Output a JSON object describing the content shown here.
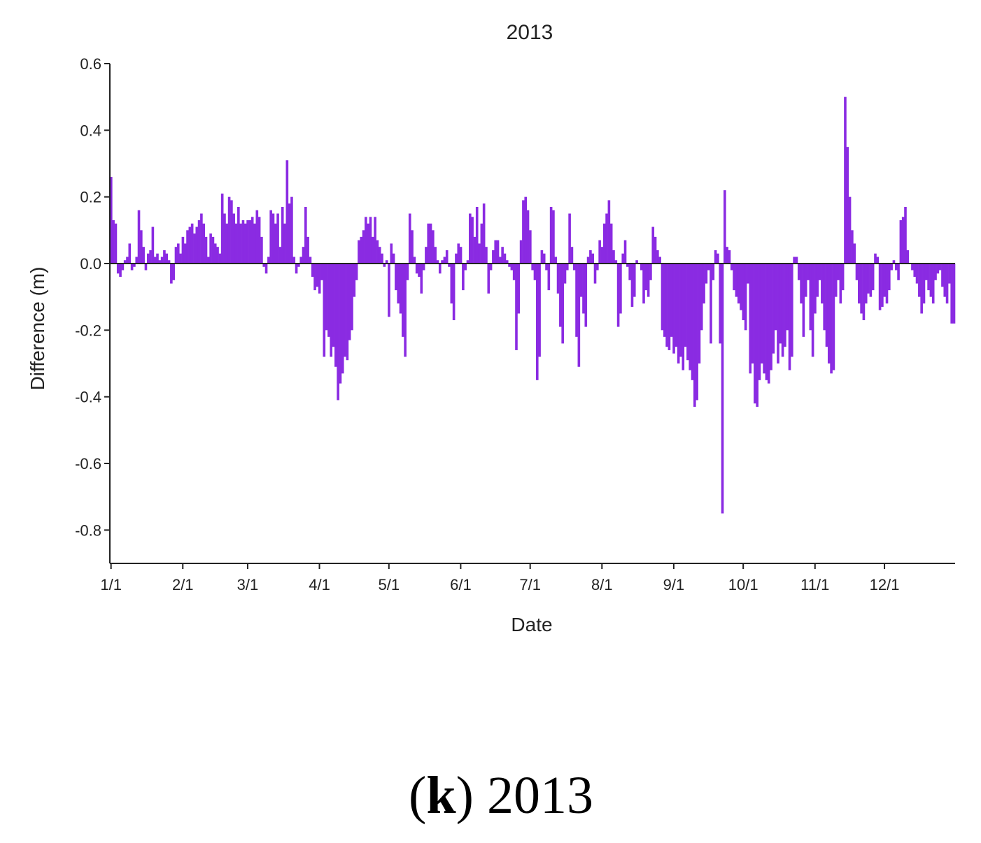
{
  "chart_data": {
    "type": "bar",
    "title": "2013",
    "xlabel": "Date",
    "ylabel": "Difference (m)",
    "color": "#8a2be2",
    "xlim": [
      0.5,
      365.5
    ],
    "ylim": [
      -0.9,
      0.6
    ],
    "xticks": [
      {
        "value": 1,
        "label": "1/1"
      },
      {
        "value": 32,
        "label": "2/1"
      },
      {
        "value": 60,
        "label": "3/1"
      },
      {
        "value": 91,
        "label": "4/1"
      },
      {
        "value": 121,
        "label": "5/1"
      },
      {
        "value": 152,
        "label": "6/1"
      },
      {
        "value": 182,
        "label": "7/1"
      },
      {
        "value": 213,
        "label": "8/1"
      },
      {
        "value": 244,
        "label": "9/1"
      },
      {
        "value": 274,
        "label": "10/1"
      },
      {
        "value": 305,
        "label": "11/1"
      },
      {
        "value": 335,
        "label": "12/1"
      }
    ],
    "yticks": [
      0.6,
      0.4,
      0.2,
      {
        "value": 0,
        "label": "0.0"
      },
      -0.2,
      -0.4,
      -0.6,
      -0.8
    ],
    "x": [
      1,
      2,
      3,
      4,
      5,
      6,
      7,
      8,
      9,
      10,
      11,
      12,
      13,
      14,
      15,
      16,
      17,
      18,
      19,
      20,
      21,
      22,
      23,
      24,
      25,
      26,
      27,
      28,
      29,
      30,
      31,
      32,
      33,
      34,
      35,
      36,
      37,
      38,
      39,
      40,
      41,
      42,
      43,
      44,
      45,
      46,
      47,
      48,
      49,
      50,
      51,
      52,
      53,
      54,
      55,
      56,
      57,
      58,
      59,
      60,
      61,
      62,
      63,
      64,
      65,
      66,
      67,
      68,
      69,
      70,
      71,
      72,
      73,
      74,
      75,
      76,
      77,
      78,
      79,
      80,
      81,
      82,
      83,
      84,
      85,
      86,
      87,
      88,
      89,
      90,
      91,
      92,
      93,
      94,
      95,
      96,
      97,
      98,
      99,
      100,
      101,
      102,
      103,
      104,
      105,
      106,
      107,
      108,
      109,
      110,
      111,
      112,
      113,
      114,
      115,
      116,
      117,
      118,
      119,
      120,
      121,
      122,
      123,
      124,
      125,
      126,
      127,
      128,
      129,
      130,
      131,
      132,
      133,
      134,
      135,
      136,
      137,
      138,
      139,
      140,
      141,
      142,
      143,
      144,
      145,
      146,
      147,
      148,
      149,
      150,
      151,
      152,
      153,
      154,
      155,
      156,
      157,
      158,
      159,
      160,
      161,
      162,
      163,
      164,
      165,
      166,
      167,
      168,
      169,
      170,
      171,
      172,
      173,
      174,
      175,
      176,
      177,
      178,
      179,
      180,
      181,
      182,
      183,
      184,
      185,
      186,
      187,
      188,
      189,
      190,
      191,
      192,
      193,
      194,
      195,
      196,
      197,
      198,
      199,
      200,
      201,
      202,
      203,
      204,
      205,
      206,
      207,
      208,
      209,
      210,
      211,
      212,
      213,
      214,
      215,
      216,
      217,
      218,
      219,
      220,
      221,
      222,
      223,
      224,
      225,
      226,
      227,
      228,
      229,
      230,
      231,
      232,
      233,
      234,
      235,
      236,
      237,
      238,
      239,
      240,
      241,
      242,
      243,
      244,
      245,
      246,
      247,
      248,
      249,
      250,
      251,
      252,
      253,
      254,
      255,
      256,
      257,
      258,
      259,
      260,
      261,
      262,
      263,
      264,
      265,
      266,
      267,
      268,
      269,
      270,
      271,
      272,
      273,
      274,
      275,
      276,
      277,
      278,
      279,
      280,
      281,
      282,
      283,
      284,
      285,
      286,
      287,
      288,
      289,
      290,
      291,
      292,
      293,
      294,
      295,
      296,
      297,
      298,
      299,
      300,
      301,
      302,
      303,
      304,
      305,
      306,
      307,
      308,
      309,
      310,
      311,
      312,
      313,
      314,
      315,
      316,
      317,
      318,
      319,
      320,
      321,
      322,
      323,
      324,
      325,
      326,
      327,
      328,
      329,
      330,
      331,
      332,
      333,
      334,
      335,
      336,
      337,
      338,
      339,
      340,
      341,
      342,
      343,
      344,
      345,
      346,
      347,
      348,
      349,
      350,
      351,
      352,
      353,
      354,
      355,
      356,
      357,
      358,
      359,
      360,
      361,
      362,
      363,
      364,
      365
    ],
    "values": [
      0.26,
      0.13,
      0.12,
      -0.03,
      -0.04,
      -0.02,
      0.01,
      0.02,
      0.06,
      -0.02,
      -0.01,
      0.02,
      0.16,
      0.1,
      0.05,
      -0.02,
      0.03,
      0.04,
      0.11,
      0.02,
      0.03,
      0.01,
      0.02,
      0.04,
      0.03,
      0.01,
      -0.06,
      -0.05,
      0.05,
      0.06,
      0.03,
      0.08,
      0.06,
      0.1,
      0.11,
      0.12,
      0.09,
      0.11,
      0.13,
      0.15,
      0.12,
      0.08,
      0.02,
      0.09,
      0.08,
      0.06,
      0.05,
      0.03,
      0.21,
      0.15,
      0.12,
      0.2,
      0.19,
      0.15,
      0.12,
      0.17,
      0.12,
      0.13,
      0.12,
      0.13,
      0.13,
      0.14,
      0.12,
      0.16,
      0.14,
      0.08,
      -0.01,
      -0.03,
      0.02,
      0.16,
      0.15,
      0.12,
      0.15,
      0.05,
      0.17,
      0.12,
      0.31,
      0.18,
      0.2,
      0.02,
      -0.03,
      -0.01,
      0.02,
      0.05,
      0.17,
      0.08,
      0.02,
      -0.04,
      -0.08,
      -0.07,
      -0.09,
      -0.05,
      -0.28,
      -0.2,
      -0.22,
      -0.28,
      -0.25,
      -0.31,
      -0.41,
      -0.36,
      -0.33,
      -0.28,
      -0.29,
      -0.23,
      -0.2,
      -0.1,
      -0.05,
      0.07,
      0.08,
      0.1,
      0.14,
      0.12,
      0.14,
      0.08,
      0.14,
      0.07,
      0.05,
      0.03,
      -0.01,
      0.01,
      -0.16,
      0.06,
      0.03,
      -0.08,
      -0.12,
      -0.15,
      -0.22,
      -0.28,
      -0.05,
      0.15,
      0.1,
      0.02,
      -0.03,
      -0.04,
      -0.09,
      -0.02,
      0.05,
      0.12,
      0.12,
      0.1,
      0.05,
      0.01,
      -0.03,
      0.01,
      0.02,
      0.04,
      -0.01,
      -0.12,
      -0.17,
      0.03,
      0.06,
      0.05,
      -0.08,
      -0.02,
      0.01,
      0.15,
      0.14,
      0.08,
      0.17,
      0.06,
      0.12,
      0.18,
      0.05,
      -0.09,
      -0.02,
      0.04,
      0.07,
      0.07,
      0.02,
      0.05,
      0.03,
      0.01,
      -0.01,
      -0.02,
      -0.05,
      -0.26,
      -0.15,
      0.07,
      0.19,
      0.2,
      0.16,
      0.1,
      -0.02,
      -0.05,
      -0.35,
      -0.28,
      0.04,
      0.03,
      -0.02,
      -0.08,
      0.17,
      0.16,
      0.02,
      -0.09,
      -0.19,
      -0.24,
      -0.06,
      -0.02,
      0.15,
      0.05,
      -0.02,
      -0.22,
      -0.31,
      -0.1,
      -0.15,
      -0.19,
      0.02,
      0.04,
      0.03,
      -0.06,
      -0.02,
      0.07,
      0.05,
      0.12,
      0.15,
      0.19,
      0.12,
      0.04,
      0.01,
      -0.19,
      -0.15,
      0.03,
      0.07,
      -0.01,
      -0.05,
      -0.13,
      -0.1,
      0.01,
      0.0,
      -0.02,
      -0.12,
      -0.08,
      -0.1,
      -0.05,
      0.11,
      0.08,
      0.04,
      0.02,
      -0.2,
      -0.22,
      -0.25,
      -0.26,
      -0.22,
      -0.27,
      -0.25,
      -0.3,
      -0.28,
      -0.32,
      -0.25,
      -0.29,
      -0.32,
      -0.35,
      -0.43,
      -0.41,
      -0.3,
      -0.2,
      -0.12,
      -0.06,
      -0.02,
      -0.24,
      -0.05,
      0.04,
      0.03,
      -0.24,
      -0.75,
      0.22,
      0.05,
      0.04,
      -0.02,
      -0.08,
      -0.1,
      -0.12,
      -0.14,
      -0.17,
      -0.2,
      -0.06,
      -0.33,
      -0.3,
      -0.42,
      -0.43,
      -0.35,
      -0.3,
      -0.33,
      -0.35,
      -0.36,
      -0.32,
      -0.27,
      -0.2,
      -0.3,
      -0.24,
      -0.28,
      -0.25,
      -0.2,
      -0.32,
      -0.28,
      0.02,
      0.02,
      -0.05,
      -0.12,
      -0.22,
      -0.1,
      -0.05,
      -0.2,
      -0.28,
      -0.15,
      -0.1,
      -0.05,
      -0.12,
      -0.2,
      -0.25,
      -0.3,
      -0.33,
      -0.32,
      -0.1,
      -0.05,
      -0.12,
      -0.08,
      0.5,
      0.35,
      0.2,
      0.1,
      0.06,
      -0.05,
      -0.12,
      -0.15,
      -0.17,
      -0.12,
      -0.09,
      -0.1,
      -0.08,
      0.03,
      0.02,
      -0.14,
      -0.13,
      -0.1,
      -0.12,
      -0.08,
      -0.02,
      0.01,
      -0.02,
      -0.05,
      0.13,
      0.14,
      0.17,
      0.04,
      0.0,
      -0.02,
      -0.04,
      -0.06,
      -0.1,
      -0.15,
      -0.12,
      -0.05,
      -0.08,
      -0.1,
      -0.12,
      -0.05,
      -0.03,
      -0.02,
      -0.07,
      -0.1,
      -0.12,
      -0.06,
      -0.18,
      -0.18
    ]
  },
  "caption_parts": [
    "(",
    "k",
    ") 2013"
  ]
}
